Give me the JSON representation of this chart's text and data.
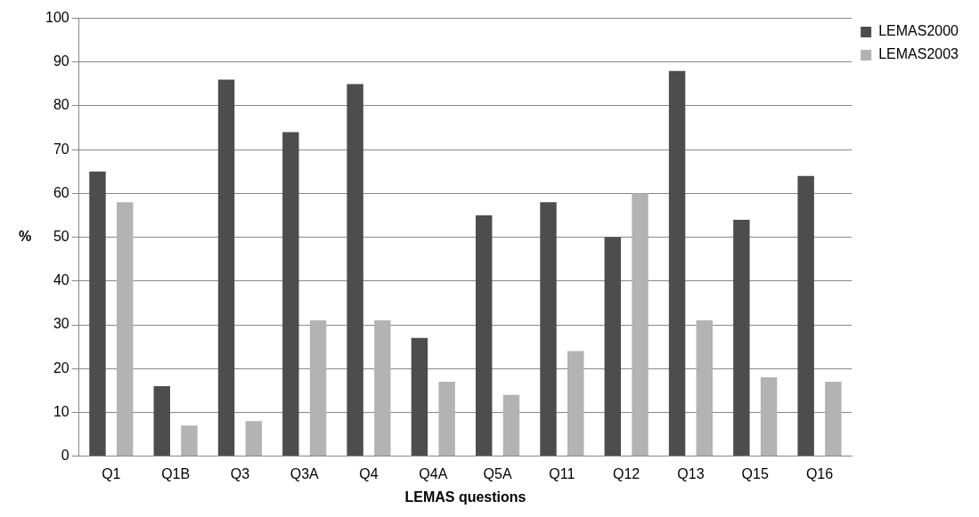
{
  "chart_data": {
    "type": "bar",
    "xlabel": "LEMAS questions",
    "ylabel": "%",
    "categories": [
      "Q1",
      "Q1B",
      "Q3",
      "Q3A",
      "Q4",
      "Q4A",
      "Q5A",
      "Q11",
      "Q12",
      "Q13",
      "Q15",
      "Q16"
    ],
    "series": [
      {
        "name": "LEMAS2000",
        "color": "#4d4d4d",
        "values": [
          65,
          16,
          86,
          74,
          85,
          27,
          55,
          58,
          50,
          88,
          54,
          64
        ]
      },
      {
        "name": "LEMAS2003",
        "color": "#b3b3b3",
        "values": [
          58,
          7,
          8,
          31,
          31,
          17,
          14,
          24,
          60,
          31,
          18,
          17
        ]
      }
    ],
    "ylim": [
      0,
      100
    ],
    "yticks": [
      0,
      10,
      20,
      30,
      40,
      50,
      60,
      70,
      80,
      90,
      100
    ],
    "grid": "y",
    "legend": "top right"
  }
}
